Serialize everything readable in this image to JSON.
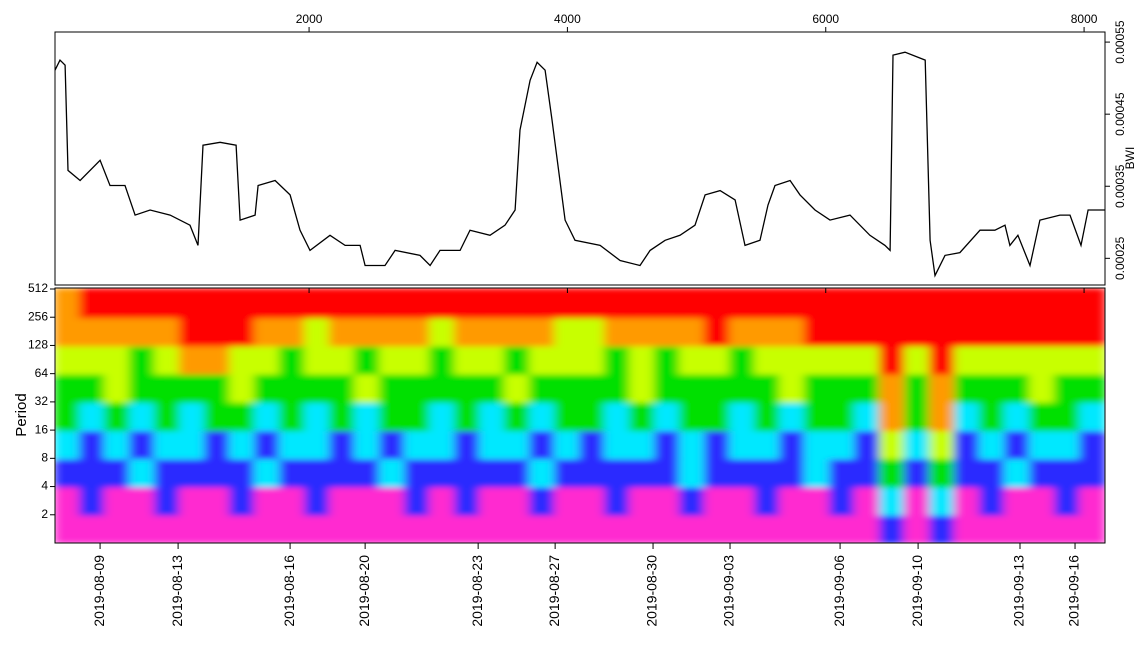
{
  "chart_data": [
    {
      "type": "line",
      "color": "#000000",
      "y_label": "BWI",
      "xlim": [
        33,
        8162
      ],
      "xticks": [
        2000,
        4000,
        6000,
        8000
      ],
      "ylim": [
        0.000213,
        0.000564
      ],
      "yticks": [
        0.00025,
        0.00035,
        0.00045,
        0.00055
      ],
      "x": [
        33,
        72,
        111,
        134,
        227,
        382,
        459,
        575,
        653,
        769,
        924,
        1078,
        1140,
        1179,
        1311,
        1435,
        1466,
        1582,
        1605,
        1737,
        1853,
        1930,
        2007,
        2162,
        2279,
        2395,
        2434,
        2588,
        2666,
        2859,
        2937,
        3014,
        3169,
        3246,
        3401,
        3517,
        3595,
        3633,
        3711,
        3765,
        3827,
        3881,
        3982,
        4059,
        4253,
        4408,
        4562,
        4640,
        4756,
        4872,
        4988,
        5066,
        5182,
        5298,
        5375,
        5491,
        5553,
        5607,
        5724,
        5801,
        5917,
        6033,
        6188,
        6342,
        6459,
        6498,
        6521,
        6614,
        6770,
        6808,
        6846,
        6923,
        7039,
        7194,
        7310,
        7388,
        7426,
        7488,
        7581,
        7658,
        7813,
        7891,
        7976,
        8031,
        8162
      ],
      "values": [
        0.000511,
        0.000525,
        0.000518,
        0.000372,
        0.000358,
        0.000386,
        0.000351,
        0.000351,
        0.00031,
        0.000317,
        0.00031,
        0.000296,
        0.000268,
        0.000407,
        0.000411,
        0.000407,
        0.000303,
        0.00031,
        0.000351,
        0.000358,
        0.000338,
        0.000289,
        0.000261,
        0.000282,
        0.000268,
        0.000268,
        0.00024,
        0.00024,
        0.000261,
        0.000254,
        0.00024,
        0.000261,
        0.000261,
        0.000289,
        0.000282,
        0.000296,
        0.000317,
        0.000428,
        0.000497,
        0.000522,
        0.000511,
        0.000442,
        0.000303,
        0.000275,
        0.000268,
        0.000247,
        0.00024,
        0.000261,
        0.000275,
        0.000282,
        0.000296,
        0.000338,
        0.000344,
        0.000331,
        0.000268,
        0.000275,
        0.000324,
        0.000351,
        0.000358,
        0.000338,
        0.000317,
        0.000303,
        0.00031,
        0.000282,
        0.000268,
        0.000261,
        0.000532,
        0.000536,
        0.000525,
        0.000275,
        0.000226,
        0.000254,
        0.000258,
        0.000289,
        0.000289,
        0.000296,
        0.000268,
        0.000282,
        0.00024,
        0.000303,
        0.00031,
        0.00031,
        0.000268,
        0.000317,
        0.000317
      ]
    },
    {
      "type": "heatmap",
      "y_label": "Period",
      "log_y": 2,
      "xlim": [
        33,
        8162
      ],
      "xticks": [
        {
          "value": 382,
          "label": "2019-08-09"
        },
        {
          "value": 986,
          "label": "2019-08-13"
        },
        {
          "value": 1853,
          "label": "2019-08-16"
        },
        {
          "value": 2434,
          "label": "2019-08-20"
        },
        {
          "value": 3309,
          "label": "2019-08-23"
        },
        {
          "value": 3905,
          "label": "2019-08-27"
        },
        {
          "value": 4663,
          "label": "2019-08-30"
        },
        {
          "value": 5259,
          "label": "2019-09-03"
        },
        {
          "value": 6111,
          "label": "2019-09-06"
        },
        {
          "value": 6715,
          "label": "2019-09-10"
        },
        {
          "value": 7504,
          "label": "2019-09-13"
        },
        {
          "value": 7930,
          "label": "2019-09-16"
        }
      ],
      "ylim": [
        1,
        512
      ],
      "yticks": [
        2,
        4,
        8,
        16,
        32,
        64,
        128,
        256,
        512
      ],
      "y_bins": [
        1,
        2,
        4,
        8,
        16,
        32,
        64,
        128,
        256,
        512
      ],
      "colors": [
        "#ff2ad0",
        "#2a2aff",
        "#00e8ff",
        "#00e000",
        "#c8ff00",
        "#ff9a00",
        "#ff0000"
      ],
      "z": [
        [
          0,
          0,
          0,
          0,
          0,
          0,
          0,
          0,
          0,
          0,
          0,
          0,
          0,
          0,
          0,
          0,
          0,
          0,
          0,
          0,
          0,
          0,
          0,
          0,
          0,
          0,
          0,
          0,
          0,
          0,
          0,
          0,
          0,
          1,
          0,
          1,
          0,
          0,
          0,
          0,
          0,
          0
        ],
        [
          0,
          1,
          0,
          0,
          1,
          0,
          0,
          1,
          0,
          0,
          1,
          0,
          0,
          0,
          1,
          0,
          1,
          0,
          0,
          1,
          0,
          0,
          1,
          0,
          0,
          1,
          0,
          0,
          1,
          0,
          0,
          1,
          0,
          2,
          0,
          2,
          0,
          1,
          0,
          0,
          1,
          0
        ],
        [
          1,
          1,
          1,
          2,
          1,
          1,
          1,
          1,
          2,
          1,
          1,
          1,
          1,
          2,
          1,
          1,
          1,
          1,
          1,
          2,
          1,
          1,
          1,
          1,
          1,
          2,
          1,
          1,
          1,
          1,
          2,
          1,
          1,
          3,
          1,
          3,
          1,
          1,
          2,
          1,
          1,
          1
        ],
        [
          2,
          1,
          2,
          1,
          2,
          2,
          1,
          2,
          1,
          2,
          2,
          1,
          2,
          1,
          2,
          2,
          1,
          2,
          2,
          1,
          2,
          1,
          2,
          2,
          1,
          2,
          1,
          2,
          2,
          1,
          2,
          2,
          1,
          4,
          2,
          4,
          1,
          2,
          1,
          2,
          2,
          1
        ],
        [
          3,
          2,
          3,
          2,
          3,
          2,
          3,
          3,
          2,
          3,
          2,
          3,
          2,
          3,
          3,
          2,
          3,
          2,
          3,
          2,
          3,
          3,
          2,
          3,
          2,
          3,
          3,
          2,
          3,
          2,
          3,
          3,
          2,
          5,
          3,
          5,
          2,
          3,
          2,
          3,
          3,
          2
        ],
        [
          3,
          3,
          4,
          3,
          3,
          3,
          3,
          4,
          3,
          3,
          3,
          3,
          4,
          3,
          3,
          3,
          3,
          3,
          4,
          3,
          3,
          3,
          3,
          4,
          3,
          3,
          3,
          3,
          3,
          4,
          3,
          3,
          3,
          5,
          3,
          5,
          3,
          3,
          3,
          4,
          3,
          3
        ],
        [
          4,
          4,
          4,
          3,
          4,
          5,
          5,
          4,
          4,
          3,
          4,
          4,
          3,
          4,
          4,
          3,
          4,
          4,
          3,
          4,
          4,
          4,
          3,
          4,
          3,
          4,
          4,
          3,
          4,
          4,
          4,
          4,
          4,
          6,
          4,
          6,
          4,
          4,
          4,
          4,
          4,
          4
        ],
        [
          5,
          5,
          5,
          5,
          5,
          6,
          6,
          6,
          5,
          5,
          4,
          5,
          5,
          5,
          5,
          4,
          5,
          5,
          5,
          5,
          4,
          4,
          5,
          5,
          5,
          5,
          6,
          5,
          5,
          5,
          6,
          6,
          6,
          6,
          6,
          6,
          6,
          6,
          6,
          6,
          6,
          6
        ],
        [
          5,
          6,
          6,
          6,
          6,
          6,
          6,
          6,
          6,
          6,
          6,
          6,
          6,
          6,
          6,
          6,
          6,
          6,
          6,
          6,
          6,
          6,
          6,
          6,
          6,
          6,
          6,
          6,
          6,
          6,
          6,
          6,
          6,
          6,
          6,
          6,
          6,
          6,
          6,
          6,
          6,
          6
        ]
      ]
    }
  ]
}
